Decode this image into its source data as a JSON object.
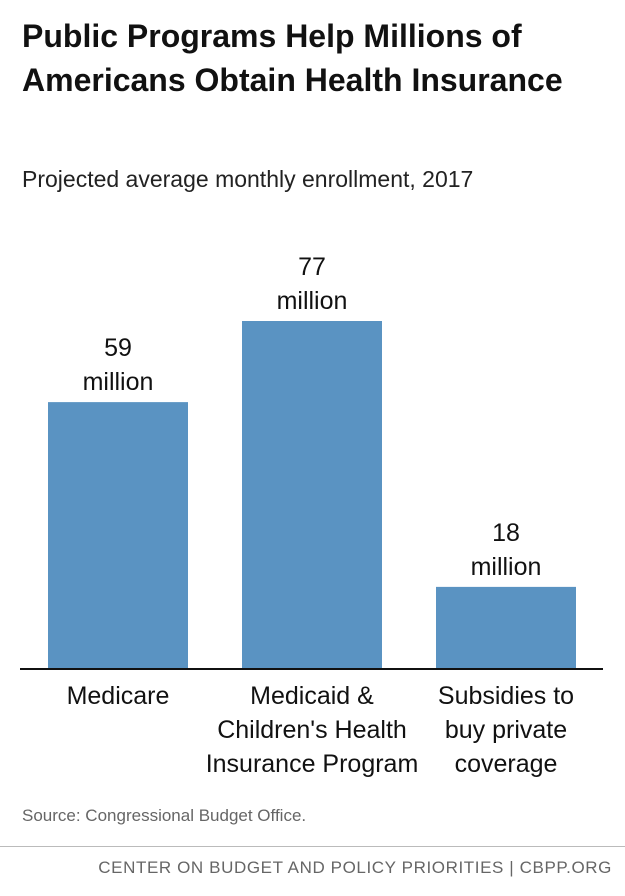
{
  "header": {
    "title": "Public Programs Help Millions of Americans Obtain Health Insurance",
    "subtitle": "Projected average monthly enrollment, 2017"
  },
  "colors": {
    "bar": "#5a93c2",
    "axis": "#111111"
  },
  "chart_data": {
    "type": "bar",
    "title": "Public Programs Help Millions of Americans Obtain Health Insurance",
    "subtitle": "Projected average monthly enrollment, 2017",
    "categories": [
      [
        "Medicare"
      ],
      [
        "Medicaid &",
        "Children's Health",
        "Insurance Program"
      ],
      [
        "Subsidies to",
        "buy private",
        "coverage"
      ]
    ],
    "values": [
      59,
      77,
      18
    ],
    "value_labels": [
      [
        "59",
        "million"
      ],
      [
        "77",
        "million"
      ],
      [
        "18",
        "million"
      ]
    ],
    "unit": "million",
    "xlabel": "",
    "ylabel": "",
    "ylim": [
      0,
      77
    ],
    "grid": false,
    "legend": "none"
  },
  "footer": {
    "source": "Source: Congressional Budget Office.",
    "org": "CENTER ON BUDGET AND POLICY PRIORITIES | CBPP.ORG"
  }
}
